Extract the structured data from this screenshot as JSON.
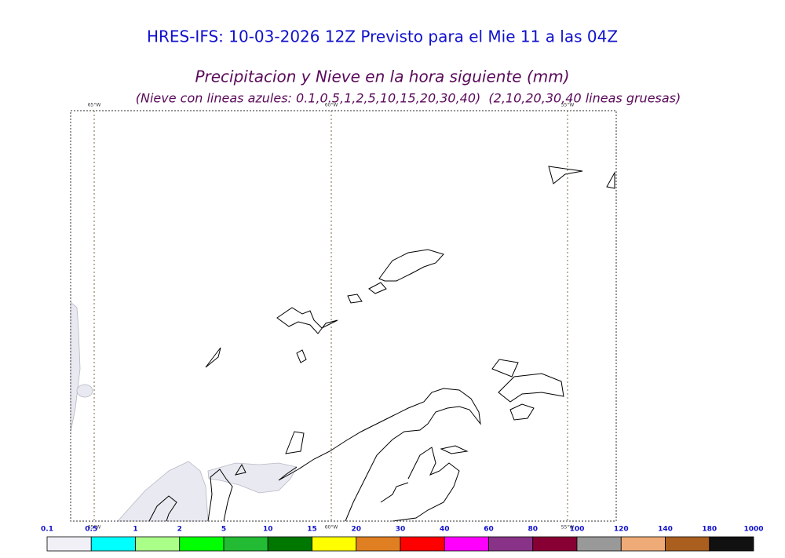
{
  "header": {
    "title": "HRES-IFS: 10-03-2026 12Z Previsto para el Mie 11 a las 04Z",
    "subtitle": "Precipitacion y Nieve en la hora siguiente (mm)",
    "note": "(Nieve con lineas azules: 0.1,0.5,1,2,5,10,15,20,30,40)  (2,10,20,30,40 lineas gruesas)"
  },
  "map": {
    "meridians": [
      "65°W",
      "60°W",
      "55°W"
    ]
  },
  "colorbar": {
    "levels": [
      0.1,
      0.5,
      1,
      2,
      5,
      10,
      15,
      20,
      30,
      40,
      60,
      80,
      100,
      120,
      140,
      180,
      1000
    ],
    "colors": [
      "#f0f0f6",
      "#00ffff",
      "#aaff88",
      "#00ff00",
      "#22bb33",
      "#007700",
      "#ffff00",
      "#e07f22",
      "#ff0000",
      "#ff00ff",
      "#883388",
      "#880033",
      "#999999",
      "#eeaa77",
      "#aa5f1f",
      "#111111"
    ]
  }
}
